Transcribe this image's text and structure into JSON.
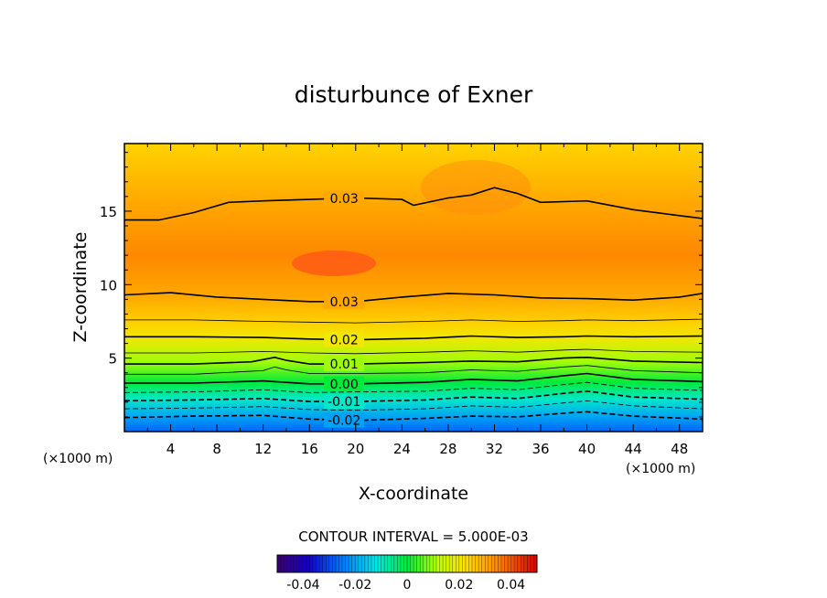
{
  "chart_data": {
    "type": "heatmap",
    "title": "disturbunce of Exner",
    "xlabel": "X-coordinate",
    "ylabel": "Z-coordinate",
    "x_unit": "(×1000 m)",
    "y_unit": "(×1000 m)",
    "xlim": [
      0,
      50
    ],
    "ylim": [
      0,
      19.6
    ],
    "x_ticks": [
      "4",
      "8",
      "12",
      "16",
      "20",
      "24",
      "28",
      "32",
      "36",
      "40",
      "44",
      "48"
    ],
    "y_ticks": [
      "5",
      "10",
      "15"
    ],
    "contour_interval_text": "CONTOUR INTERVAL = 5.000E-03",
    "contours": [
      {
        "level": -0.02,
        "label": "-0.02",
        "style": "dashed",
        "points": [
          [
            0,
            0.95
          ],
          [
            6,
            1.05
          ],
          [
            12,
            1.1
          ],
          [
            16,
            0.85
          ],
          [
            20,
            0.75
          ],
          [
            26,
            0.9
          ],
          [
            30,
            1.05
          ],
          [
            34,
            1.0
          ],
          [
            38,
            1.25
          ],
          [
            40,
            1.35
          ],
          [
            44,
            1.05
          ],
          [
            50,
            0.85
          ]
        ]
      },
      {
        "level": -0.015,
        "label": "",
        "style": "dashed",
        "points": [
          [
            0,
            1.55
          ],
          [
            6,
            1.6
          ],
          [
            12,
            1.7
          ],
          [
            16,
            1.5
          ],
          [
            20,
            1.45
          ],
          [
            26,
            1.55
          ],
          [
            30,
            1.75
          ],
          [
            34,
            1.65
          ],
          [
            38,
            1.95
          ],
          [
            40,
            2.1
          ],
          [
            44,
            1.75
          ],
          [
            50,
            1.55
          ]
        ]
      },
      {
        "level": -0.01,
        "label": "-0.01",
        "style": "dashed",
        "points": [
          [
            0,
            2.1
          ],
          [
            6,
            2.15
          ],
          [
            12,
            2.25
          ],
          [
            16,
            2.05
          ],
          [
            20,
            2.05
          ],
          [
            26,
            2.15
          ],
          [
            30,
            2.35
          ],
          [
            34,
            2.25
          ],
          [
            38,
            2.6
          ],
          [
            40,
            2.75
          ],
          [
            44,
            2.35
          ],
          [
            50,
            2.2
          ]
        ]
      },
      {
        "level": -0.005,
        "label": "",
        "style": "dashed",
        "points": [
          [
            0,
            2.65
          ],
          [
            6,
            2.7
          ],
          [
            12,
            2.85
          ],
          [
            16,
            2.65
          ],
          [
            20,
            2.7
          ],
          [
            26,
            2.75
          ],
          [
            30,
            2.95
          ],
          [
            34,
            2.85
          ],
          [
            38,
            3.2
          ],
          [
            40,
            3.35
          ],
          [
            44,
            2.95
          ],
          [
            50,
            2.8
          ]
        ]
      },
      {
        "level": 0.0,
        "label": "0.00",
        "style": "solid",
        "points": [
          [
            0,
            3.3
          ],
          [
            6,
            3.3
          ],
          [
            12,
            3.45
          ],
          [
            16,
            3.25
          ],
          [
            20,
            3.25
          ],
          [
            26,
            3.35
          ],
          [
            30,
            3.55
          ],
          [
            34,
            3.45
          ],
          [
            38,
            3.8
          ],
          [
            40,
            3.95
          ],
          [
            44,
            3.55
          ],
          [
            50,
            3.4
          ]
        ]
      },
      {
        "level": 0.005,
        "label": "",
        "style": "solid",
        "points": [
          [
            0,
            3.9
          ],
          [
            6,
            3.9
          ],
          [
            12,
            4.15
          ],
          [
            13,
            4.4
          ],
          [
            14,
            4.2
          ],
          [
            16,
            3.95
          ],
          [
            20,
            3.95
          ],
          [
            26,
            4.0
          ],
          [
            30,
            4.2
          ],
          [
            34,
            4.1
          ],
          [
            38,
            4.4
          ],
          [
            40,
            4.5
          ],
          [
            44,
            4.15
          ],
          [
            50,
            4.0
          ]
        ]
      },
      {
        "level": 0.01,
        "label": "0.01",
        "style": "solid",
        "points": [
          [
            0,
            4.6
          ],
          [
            6,
            4.6
          ],
          [
            11,
            4.75
          ],
          [
            13,
            5.05
          ],
          [
            14,
            4.85
          ],
          [
            16,
            4.6
          ],
          [
            20,
            4.6
          ],
          [
            26,
            4.7
          ],
          [
            30,
            4.8
          ],
          [
            34,
            4.75
          ],
          [
            38,
            5.0
          ],
          [
            40,
            5.05
          ],
          [
            44,
            4.8
          ],
          [
            50,
            4.7
          ]
        ]
      },
      {
        "level": 0.015,
        "label": "",
        "style": "solid",
        "points": [
          [
            0,
            5.35
          ],
          [
            6,
            5.35
          ],
          [
            12,
            5.45
          ],
          [
            16,
            5.35
          ],
          [
            20,
            5.3
          ],
          [
            26,
            5.4
          ],
          [
            30,
            5.5
          ],
          [
            34,
            5.4
          ],
          [
            38,
            5.55
          ],
          [
            40,
            5.6
          ],
          [
            44,
            5.45
          ],
          [
            50,
            5.4
          ]
        ]
      },
      {
        "level": 0.02,
        "label": "0.02",
        "style": "solid",
        "points": [
          [
            0,
            6.45
          ],
          [
            6,
            6.45
          ],
          [
            12,
            6.4
          ],
          [
            16,
            6.3
          ],
          [
            20,
            6.25
          ],
          [
            26,
            6.35
          ],
          [
            30,
            6.5
          ],
          [
            34,
            6.4
          ],
          [
            38,
            6.45
          ],
          [
            40,
            6.5
          ],
          [
            44,
            6.45
          ],
          [
            50,
            6.5
          ]
        ]
      },
      {
        "level": 0.025,
        "label": "",
        "style": "solid",
        "points": [
          [
            0,
            7.6
          ],
          [
            6,
            7.6
          ],
          [
            12,
            7.5
          ],
          [
            16,
            7.45
          ],
          [
            20,
            7.4
          ],
          [
            26,
            7.5
          ],
          [
            30,
            7.6
          ],
          [
            34,
            7.5
          ],
          [
            38,
            7.55
          ],
          [
            40,
            7.6
          ],
          [
            44,
            7.55
          ],
          [
            50,
            7.65
          ]
        ]
      },
      {
        "level": 0.03,
        "label": "0.03",
        "style": "solid",
        "points": [
          [
            0,
            9.3
          ],
          [
            4,
            9.45
          ],
          [
            8,
            9.15
          ],
          [
            12,
            9.0
          ],
          [
            16,
            8.85
          ],
          [
            20,
            8.85
          ],
          [
            24,
            9.15
          ],
          [
            28,
            9.4
          ],
          [
            32,
            9.3
          ],
          [
            36,
            9.1
          ],
          [
            40,
            9.05
          ],
          [
            44,
            8.95
          ],
          [
            48,
            9.15
          ],
          [
            50,
            9.4
          ]
        ]
      },
      {
        "level": 0.03,
        "label": "0.03",
        "style": "solid",
        "points": [
          [
            0,
            14.4
          ],
          [
            3,
            14.4
          ],
          [
            6,
            14.9
          ],
          [
            9,
            15.6
          ],
          [
            12,
            15.7
          ],
          [
            16,
            15.8
          ],
          [
            20,
            15.9
          ],
          [
            24,
            15.8
          ],
          [
            25,
            15.4
          ],
          [
            28,
            15.9
          ],
          [
            30,
            16.1
          ],
          [
            32,
            16.6
          ],
          [
            34,
            16.2
          ],
          [
            36,
            15.6
          ],
          [
            40,
            15.7
          ],
          [
            44,
            15.1
          ],
          [
            48,
            14.7
          ],
          [
            50,
            14.5
          ]
        ]
      }
    ],
    "colorbar": {
      "range": [
        -0.05,
        0.05
      ],
      "ticks": [
        "-0.04",
        "-0.02",
        "0",
        "0.02",
        "0.04"
      ],
      "tick_values": [
        -0.04,
        -0.02,
        0,
        0.02,
        0.04
      ]
    }
  }
}
